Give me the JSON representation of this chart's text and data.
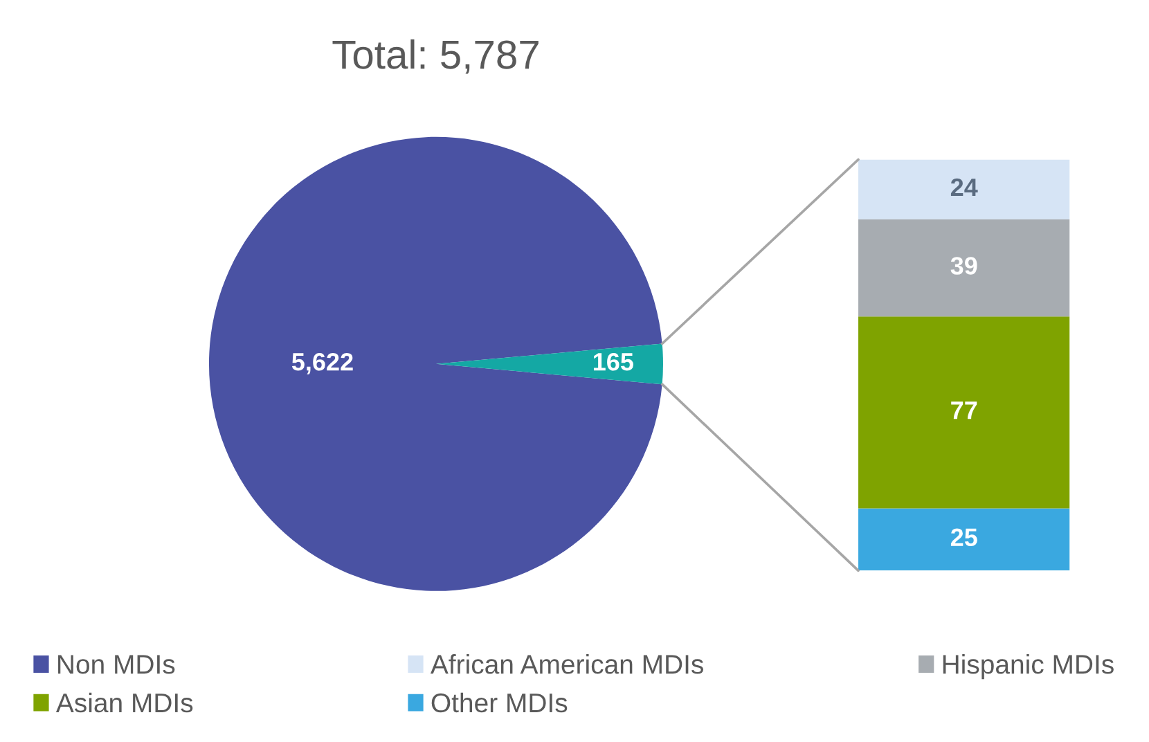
{
  "chart_data": [
    {
      "type": "pie",
      "title": "Total: 5,787",
      "categories": [
        "Non MDIs",
        null
      ],
      "values": [
        5622,
        165
      ],
      "colors": [
        "#4a52a3",
        "#14a8a4"
      ],
      "value_labels": [
        "5,622",
        "165"
      ],
      "legend": "bottom"
    },
    {
      "type": "bar",
      "stacked": true,
      "categories": [
        null
      ],
      "data_labels": true,
      "legend": "bottom",
      "series": [
        {
          "name": "Other MDIs",
          "color": "#3aa8e0",
          "values": [
            25
          ]
        },
        {
          "name": "Asian MDIs",
          "color": "#7fa300",
          "values": [
            77
          ]
        },
        {
          "name": "Hispanic MDIs",
          "color": "#a7acb1",
          "values": [
            39
          ]
        },
        {
          "name": "African American MDIs",
          "color": "#d6e4f5",
          "values": [
            24
          ]
        }
      ]
    }
  ]
}
